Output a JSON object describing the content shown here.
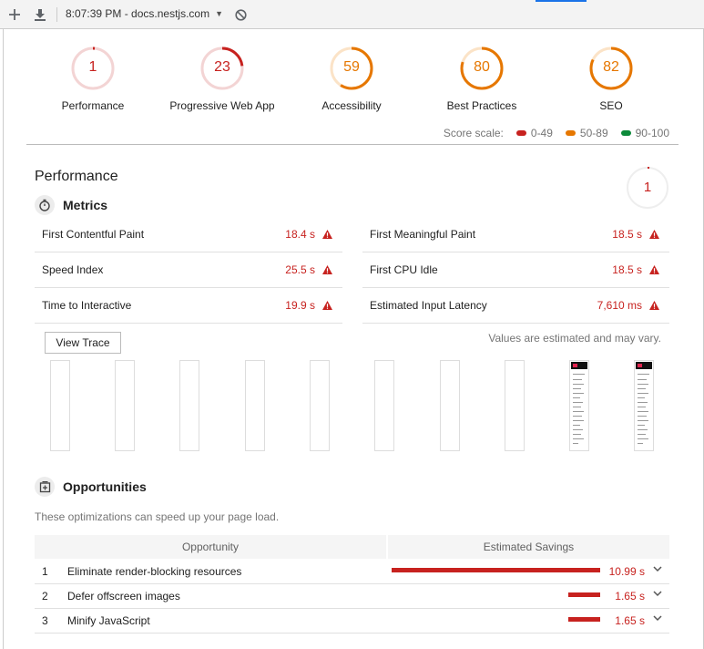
{
  "toolbar": {
    "add_icon": "plus-icon",
    "download_icon": "download-icon",
    "report_selector": "8:07:39 PM - docs.nestjs.com",
    "clear_icon": "block-icon"
  },
  "colors": {
    "fail": "#c7221f",
    "average": "#e67700",
    "pass": "#0c8a3a"
  },
  "categories": [
    {
      "label": "Performance",
      "score": "1",
      "value": 1,
      "rating": "fail"
    },
    {
      "label": "Progressive Web App",
      "score": "23",
      "value": 23,
      "rating": "fail"
    },
    {
      "label": "Accessibility",
      "score": "59",
      "value": 59,
      "rating": "average"
    },
    {
      "label": "Best Practices",
      "score": "80",
      "value": 80,
      "rating": "average"
    },
    {
      "label": "SEO",
      "score": "82",
      "value": 82,
      "rating": "average"
    }
  ],
  "scale": {
    "label": "Score scale:",
    "ranges": [
      "0-49",
      "50-89",
      "90-100"
    ]
  },
  "performance": {
    "title": "Performance",
    "score": "1",
    "value": 1,
    "metrics_title": "Metrics",
    "metrics": [
      {
        "name": "First Contentful Paint",
        "value": "18.4 s"
      },
      {
        "name": "First Meaningful Paint",
        "value": "18.5 s"
      },
      {
        "name": "Speed Index",
        "value": "25.5 s"
      },
      {
        "name": "First CPU Idle",
        "value": "18.5 s"
      },
      {
        "name": "Time to Interactive",
        "value": "19.9 s"
      },
      {
        "name": "Estimated Input Latency",
        "value": "7,610 ms"
      }
    ],
    "view_trace_label": "View Trace",
    "estimated_note": "Values are estimated and may vary."
  },
  "opportunities": {
    "title": "Opportunities",
    "description": "These optimizations can speed up your page load.",
    "col_opportunity": "Opportunity",
    "col_savings": "Estimated Savings",
    "rows": [
      {
        "index": "1",
        "title": "Eliminate render-blocking resources",
        "savings": "10.99 s",
        "seconds": 10.99
      },
      {
        "index": "2",
        "title": "Defer offscreen images",
        "savings": "1.65 s",
        "seconds": 1.65
      },
      {
        "index": "3",
        "title": "Minify JavaScript",
        "savings": "1.65 s",
        "seconds": 1.65
      }
    ]
  }
}
